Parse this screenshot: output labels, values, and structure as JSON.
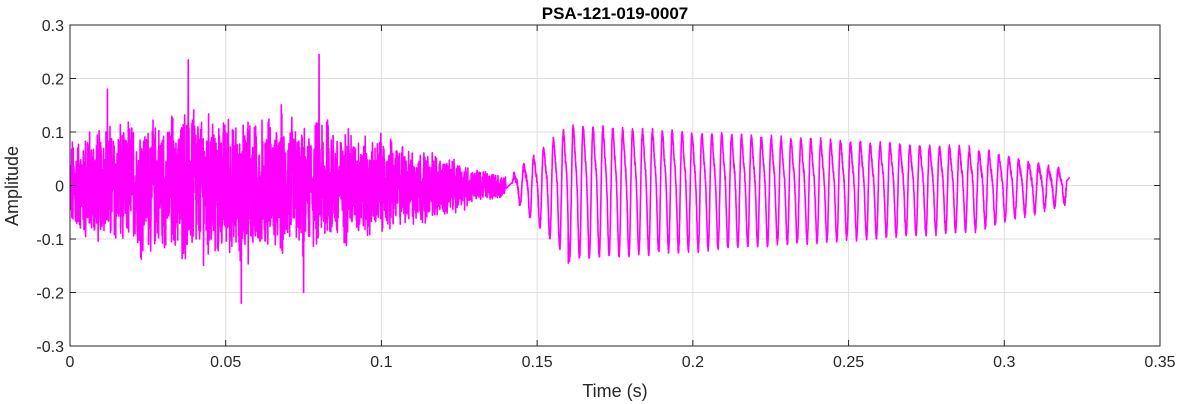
{
  "chart_data": {
    "type": "line",
    "title": "PSA-121-019-0007",
    "xlabel": "Time (s)",
    "ylabel": "Amplitude",
    "xlim": [
      0,
      0.35
    ],
    "ylim": [
      -0.3,
      0.3
    ],
    "xticks": [
      0,
      0.05,
      0.1,
      0.15,
      0.2,
      0.25,
      0.3,
      0.35
    ],
    "xtick_labels": [
      "0",
      "0.05",
      "0.1",
      "0.15",
      "0.2",
      "0.25",
      "0.3",
      "0.35"
    ],
    "yticks": [
      -0.3,
      -0.2,
      -0.1,
      0,
      0.1,
      0.2,
      0.3
    ],
    "ytick_labels": [
      "-0.3",
      "-0.2",
      "-0.1",
      "0",
      "0.1",
      "0.2",
      "0.3"
    ],
    "grid": true,
    "series": [
      {
        "color": "#ff00ff",
        "x_range": [
          0,
          0.321
        ],
        "envelope_segments": [
          {
            "t": [
              0.0,
              0.14
            ],
            "character": "noisy burst",
            "peak_max": 0.245,
            "peak_max_t": 0.08,
            "peak_min": -0.22,
            "peak_min_t": 0.055
          },
          {
            "t": [
              0.142,
              0.32
            ],
            "character": "periodic oscillation",
            "cycles": 56,
            "max_amp_pos": 0.13,
            "max_amp_neg": -0.145,
            "end_amp": 0.07
          }
        ],
        "notable_peaks": [
          {
            "x": 0.012,
            "y": 0.18
          },
          {
            "x": 0.038,
            "y": 0.235
          },
          {
            "x": 0.055,
            "y": -0.22
          },
          {
            "x": 0.08,
            "y": 0.245
          },
          {
            "x": 0.075,
            "y": -0.2
          },
          {
            "x": 0.16,
            "y": -0.145
          }
        ]
      }
    ]
  }
}
